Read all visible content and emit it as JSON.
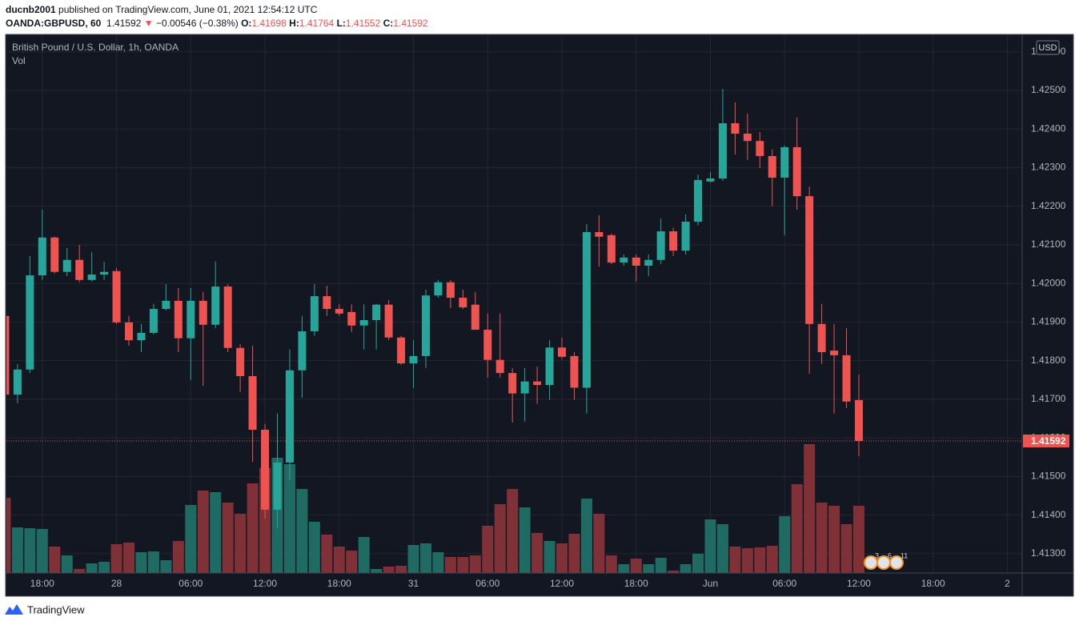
{
  "header": {
    "user": "ducnb2001",
    "published": "published on TradingView.com, June 01, 2021 12:54:12 UTC",
    "symbol": "OANDA:GBPUSD, 60",
    "arrow": "▼",
    "change": "−0.00546 (−0.38%)",
    "ohlc_labels": [
      "O:",
      "H:",
      "L:",
      "C:"
    ]
  },
  "footer": "TradingView",
  "chart_data": {
    "type": "candlestick",
    "title": "British Pound / U.S. Dollar, 1h, OANDA",
    "volume_label": "Vol",
    "currency": "USD",
    "events": [
      "3",
      "6",
      "11"
    ],
    "up_color": "#26a69a",
    "down_color": "#ef5350",
    "volume_up_color": "#1f6b63",
    "volume_down_color": "#803037",
    "grid": true,
    "open": [
      1.41916,
      1.41712,
      1.41777,
      1.42021,
      1.42119,
      1.4203,
      1.42061,
      1.42009,
      1.42023,
      1.42032,
      1.41899,
      1.41853,
      1.41872,
      1.41934,
      1.41955,
      1.41858,
      1.41955,
      1.41893,
      1.41992,
      1.41833,
      1.4176,
      1.41621,
      1.41414,
      1.41536,
      1.41775,
      1.41876,
      1.41967,
      1.41934,
      1.41926,
      1.41891,
      1.41905,
      1.41945,
      1.4186,
      1.41793,
      1.41812,
      1.41969,
      1.42003,
      1.41963,
      1.41945,
      1.4188,
      1.41802,
      1.41768,
      1.41715,
      1.41746,
      1.41737,
      1.41834,
      1.41812,
      1.4173,
      1.42133,
      1.42125,
      1.42054,
      1.42067,
      1.42046,
      1.42061,
      1.42135,
      1.42085,
      1.4216,
      1.42264,
      1.42272,
      1.42415,
      1.42388,
      1.42369,
      1.4233,
      1.42274,
      1.42353,
      1.42226,
      1.41895,
      1.41826,
      1.41814,
      1.41698
    ],
    "high": [
      1.4192,
      1.41791,
      1.42071,
      1.42191,
      1.42121,
      1.42092,
      1.421,
      1.42081,
      1.42056,
      1.4204,
      1.41916,
      1.41895,
      1.41947,
      1.41998,
      1.41988,
      1.41988,
      1.41978,
      1.42057,
      1.41998,
      1.41843,
      1.41839,
      1.41636,
      1.41663,
      1.41829,
      1.41916,
      1.41998,
      1.41994,
      1.41946,
      1.41946,
      1.41946,
      1.41947,
      1.41957,
      1.41864,
      1.41853,
      1.41984,
      1.42009,
      1.42009,
      1.41984,
      1.41978,
      1.41922,
      1.41922,
      1.41781,
      1.41781,
      1.41785,
      1.41853,
      1.4186,
      1.41822,
      1.42154,
      1.42177,
      1.42129,
      1.42075,
      1.42075,
      1.42075,
      1.42168,
      1.42144,
      1.42179,
      1.42282,
      1.42289,
      1.42504,
      1.42469,
      1.4244,
      1.42392,
      1.42347,
      1.42357,
      1.4243,
      1.42251,
      1.41947,
      1.41895,
      1.41884,
      1.41764
    ],
    "low": [
      1.417,
      1.4169,
      1.41768,
      1.42009,
      1.42026,
      1.42019,
      1.42003,
      1.42005,
      1.42009,
      1.41895,
      1.41839,
      1.41822,
      1.41868,
      1.4193,
      1.41822,
      1.4175,
      1.41735,
      1.41884,
      1.41822,
      1.41719,
      1.41538,
      1.41391,
      1.41366,
      1.41491,
      1.41704,
      1.41864,
      1.41916,
      1.41916,
      1.41874,
      1.41829,
      1.41829,
      1.41853,
      1.41789,
      1.41729,
      1.41781,
      1.41963,
      1.41936,
      1.41934,
      1.4188,
      1.41756,
      1.41756,
      1.4164,
      1.41642,
      1.41688,
      1.41698,
      1.41804,
      1.41698,
      1.41663,
      1.42044,
      1.4205,
      1.42046,
      1.42005,
      1.42019,
      1.4205,
      1.42071,
      1.42075,
      1.4215,
      1.42262,
      1.42266,
      1.42334,
      1.4232,
      1.42299,
      1.422,
      1.42125,
      1.42191,
      1.41766,
      1.41791,
      1.41663,
      1.41677,
      1.41552
    ],
    "close": [
      1.41712,
      1.41777,
      1.42021,
      1.42119,
      1.4203,
      1.42061,
      1.42009,
      1.42023,
      1.4203,
      1.41899,
      1.41853,
      1.41872,
      1.41934,
      1.41955,
      1.41858,
      1.41955,
      1.41893,
      1.41992,
      1.41833,
      1.4176,
      1.41621,
      1.41414,
      1.41536,
      1.41775,
      1.41876,
      1.41967,
      1.41934,
      1.41922,
      1.41891,
      1.41905,
      1.41945,
      1.4186,
      1.41793,
      1.41812,
      1.41969,
      1.42003,
      1.41963,
      1.41938,
      1.4188,
      1.41802,
      1.41768,
      1.41715,
      1.41746,
      1.41737,
      1.41834,
      1.4181,
      1.4173,
      1.42133,
      1.42121,
      1.42054,
      1.42067,
      1.42046,
      1.42061,
      1.42135,
      1.42085,
      1.4216,
      1.42268,
      1.42272,
      1.42415,
      1.42388,
      1.42369,
      1.4233,
      1.42274,
      1.42353,
      1.42226,
      1.41895,
      1.41822,
      1.41814,
      1.41694,
      1.41592
    ],
    "volume": [
      94,
      57,
      56,
      55,
      33,
      22,
      5,
      12,
      14,
      36,
      38,
      26,
      27,
      16,
      40,
      85,
      103,
      101,
      88,
      74,
      112,
      131,
      144,
      136,
      105,
      64,
      48,
      33,
      28,
      45,
      5,
      8,
      9,
      35,
      37,
      26,
      20,
      20,
      22,
      59,
      86,
      105,
      82,
      50,
      40,
      37,
      49,
      93,
      74,
      22,
      11,
      18,
      11,
      19,
      3,
      11,
      24,
      67,
      61,
      33,
      31,
      32,
      34,
      71,
      111,
      161,
      88,
      84,
      61,
      84
    ],
    "xlim": [
      0.1,
      82.2
    ],
    "xticks": [
      {
        "value": 3,
        "label": "18:00"
      },
      {
        "value": 9,
        "label": "28"
      },
      {
        "value": 15,
        "label": "06:00"
      },
      {
        "value": 21,
        "label": "12:00"
      },
      {
        "value": 27,
        "label": "18:00"
      },
      {
        "value": 33,
        "label": "31"
      },
      {
        "value": 39,
        "label": "06:00"
      },
      {
        "value": 45,
        "label": "12:00"
      },
      {
        "value": 51,
        "label": "18:00"
      },
      {
        "value": 57,
        "label": "Jun"
      },
      {
        "value": 63,
        "label": "06:00"
      },
      {
        "value": 69,
        "label": "12:00"
      },
      {
        "value": 75,
        "label": "18:00"
      },
      {
        "value": 81,
        "label": "2"
      }
    ],
    "ylim": [
      1.4125,
      1.42643
    ],
    "yticks": [
      {
        "value": 1.413,
        "label": "1.41300"
      },
      {
        "value": 1.414,
        "label": "1.41400"
      },
      {
        "value": 1.415,
        "label": "1.41500"
      },
      {
        "value": 1.416,
        "label": "1.41600"
      },
      {
        "value": 1.417,
        "label": "1.41700"
      },
      {
        "value": 1.418,
        "label": "1.41800"
      },
      {
        "value": 1.419,
        "label": "1.41900"
      },
      {
        "value": 1.42,
        "label": "1.42000"
      },
      {
        "value": 1.421,
        "label": "1.42100"
      },
      {
        "value": 1.422,
        "label": "1.42200"
      },
      {
        "value": 1.423,
        "label": "1.42300"
      },
      {
        "value": 1.424,
        "label": "1.42400"
      },
      {
        "value": 1.425,
        "label": "1.42500"
      },
      {
        "value": 1.426,
        "label": "1.42600"
      }
    ]
  }
}
